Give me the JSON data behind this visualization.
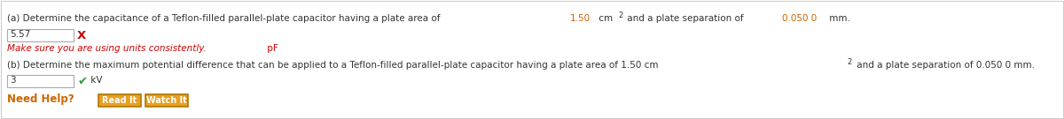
{
  "bg_color": "#ffffff",
  "border_color": "#cccccc",
  "part_a_text": "(a) Determine the capacitance of a Teflon-filled parallel-plate capacitor having a plate area of ",
  "part_a_highlight1": "1.50",
  "part_a_mid1": " cm",
  "part_a_sup1": "2",
  "part_a_mid2": " and a plate separation of ",
  "part_a_highlight2": "0.050 0",
  "part_a_end": " mm.",
  "input_a_value": "5.57",
  "error_icon": "X",
  "error_msg": "Make sure you are using units consistently.",
  "error_unit": " pF",
  "part_b_text": "(b) Determine the maximum potential difference that can be applied to a Teflon-filled parallel-plate capacitor having a plate area of 1.50 cm",
  "part_b_sup": "2",
  "part_b_end": " and a plate separation of 0.050 0 mm.",
  "input_b_value": "3",
  "check_mark": "✔",
  "unit_b": " kV",
  "need_help_text": "Need Help?",
  "btn1_text": "Read It",
  "btn2_text": "Watch It",
  "text_color": "#333333",
  "highlight_color": "#cc6600",
  "error_color": "#cc0000",
  "success_color": "#339933",
  "need_help_color": "#cc6600",
  "btn_face_color": "#e8a020",
  "btn_text_color": "#ffffff",
  "btn_border_color": "#b07800",
  "input_bg": "#ffffff",
  "input_border": "#aaaaaa",
  "font_size": 7.5
}
